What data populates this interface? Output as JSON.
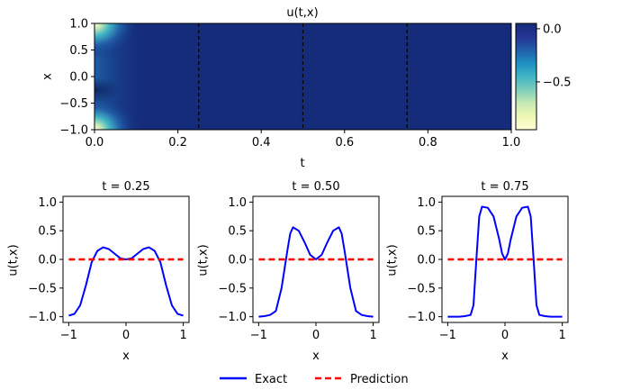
{
  "chart_data": [
    {
      "type": "heatmap",
      "title": "u(t,x)",
      "xlabel": "t",
      "ylabel": "x",
      "xlim": [
        0.0,
        1.0
      ],
      "ylim": [
        -1.0,
        1.0
      ],
      "xticks": [
        "0.0",
        "0.2",
        "0.4",
        "0.6",
        "0.8",
        "1.0"
      ],
      "yticks": [
        "1.0",
        "0.5",
        "0.0",
        "−0.5",
        "−1.0"
      ],
      "vlines_t": [
        0.25,
        0.5,
        0.75
      ],
      "colorbar": {
        "range": [
          -0.95,
          0.05
        ],
        "ticks": [
          "0.0",
          "−0.5"
        ]
      },
      "colormap": [
        "#ffffd9",
        "#edf8b1",
        "#c7e9b4",
        "#7fcdbb",
        "#41b6c4",
        "#1d91c0",
        "#225ea8",
        "#253494",
        "#152c7b"
      ]
    },
    {
      "type": "line",
      "title": "t = 0.25",
      "xlabel": "x",
      "ylabel": "u(t,x)",
      "xlim": [
        -1.1,
        1.1
      ],
      "ylim": [
        -1.1,
        1.1
      ],
      "xticks": [
        "−1",
        "0",
        "1"
      ],
      "yticks": [
        "1.0",
        "0.5",
        "0.0",
        "−0.5",
        "−1.0"
      ],
      "series": [
        {
          "name": "Exact",
          "color": "#0000ff",
          "x": [
            -1.0,
            -0.9,
            -0.8,
            -0.7,
            -0.6,
            -0.5,
            -0.4,
            -0.3,
            -0.2,
            -0.1,
            0.0,
            0.1,
            0.2,
            0.3,
            0.4,
            0.5,
            0.6,
            0.7,
            0.8,
            0.9,
            1.0
          ],
          "y": [
            -0.98,
            -0.95,
            -0.8,
            -0.45,
            -0.05,
            0.15,
            0.21,
            0.18,
            0.1,
            0.02,
            0.0,
            0.02,
            0.1,
            0.18,
            0.21,
            0.15,
            -0.05,
            -0.45,
            -0.8,
            -0.95,
            -0.98
          ]
        },
        {
          "name": "Prediction",
          "color": "#ff0000",
          "x": [
            -1.0,
            1.0
          ],
          "y": [
            0.0,
            0.0
          ]
        }
      ]
    },
    {
      "type": "line",
      "title": "t = 0.50",
      "xlabel": "x",
      "ylabel": "u(t,x)",
      "xlim": [
        -1.1,
        1.1
      ],
      "ylim": [
        -1.1,
        1.1
      ],
      "xticks": [
        "−1",
        "0",
        "1"
      ],
      "yticks": [
        "1.0",
        "0.5",
        "0.0",
        "−0.5",
        "−1.0"
      ],
      "series": [
        {
          "name": "Exact",
          "color": "#0000ff",
          "x": [
            -1.0,
            -0.9,
            -0.8,
            -0.7,
            -0.6,
            -0.5,
            -0.45,
            -0.4,
            -0.3,
            -0.2,
            -0.1,
            0.0,
            0.1,
            0.2,
            0.3,
            0.4,
            0.45,
            0.5,
            0.6,
            0.7,
            0.8,
            0.9,
            1.0
          ],
          "y": [
            -1.0,
            -0.99,
            -0.97,
            -0.9,
            -0.5,
            0.15,
            0.45,
            0.56,
            0.5,
            0.3,
            0.08,
            0.0,
            0.08,
            0.3,
            0.5,
            0.56,
            0.45,
            0.15,
            -0.5,
            -0.9,
            -0.97,
            -0.99,
            -1.0
          ]
        },
        {
          "name": "Prediction",
          "color": "#ff0000",
          "x": [
            -1.0,
            1.0
          ],
          "y": [
            0.0,
            0.0
          ]
        }
      ]
    },
    {
      "type": "line",
      "title": "t = 0.75",
      "xlabel": "x",
      "ylabel": "u(t,x)",
      "xlim": [
        -1.1,
        1.1
      ],
      "ylim": [
        -1.1,
        1.1
      ],
      "xticks": [
        "−1",
        "0",
        "1"
      ],
      "yticks": [
        "1.0",
        "0.5",
        "0.0",
        "−0.5",
        "−1.0"
      ],
      "series": [
        {
          "name": "Exact",
          "color": "#0000ff",
          "x": [
            -1.0,
            -0.9,
            -0.8,
            -0.7,
            -0.6,
            -0.55,
            -0.5,
            -0.45,
            -0.4,
            -0.3,
            -0.2,
            -0.1,
            -0.05,
            0.0,
            0.05,
            0.1,
            0.2,
            0.3,
            0.4,
            0.45,
            0.5,
            0.55,
            0.6,
            0.7,
            0.8,
            0.9,
            1.0
          ],
          "y": [
            -1.0,
            -1.0,
            -1.0,
            -0.99,
            -0.97,
            -0.8,
            0.0,
            0.75,
            0.92,
            0.9,
            0.75,
            0.35,
            0.1,
            0.0,
            0.1,
            0.35,
            0.75,
            0.9,
            0.92,
            0.75,
            0.0,
            -0.8,
            -0.97,
            -0.99,
            -1.0,
            -1.0,
            -1.0
          ]
        },
        {
          "name": "Prediction",
          "color": "#ff0000",
          "x": [
            -1.0,
            1.0
          ],
          "y": [
            0.0,
            0.0
          ]
        }
      ]
    }
  ],
  "legend": {
    "placement": "bottom-center",
    "exact_label": "Exact",
    "prediction_label": "Prediction"
  }
}
